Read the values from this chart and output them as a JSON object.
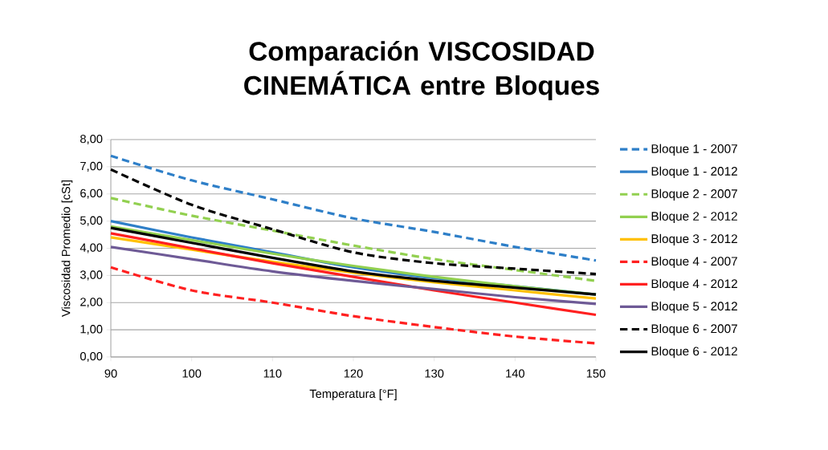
{
  "chart_data": {
    "type": "line",
    "title": "Comparación VISCOSIDAD CINEMÁTICA entre Bloques",
    "xlabel": "Temperatura [°F]",
    "ylabel": "Viscosidad Promedio [cSt]",
    "x": [
      90,
      100,
      110,
      120,
      130,
      140,
      150
    ],
    "xlim": [
      90,
      150
    ],
    "xticks": [
      90,
      100,
      110,
      120,
      130,
      140,
      150
    ],
    "ylim": [
      0,
      8
    ],
    "yticks": [
      {
        "value": 0,
        "label": "0,00"
      },
      {
        "value": 1,
        "label": "1,00"
      },
      {
        "value": 2,
        "label": "2,00"
      },
      {
        "value": 3,
        "label": "3,00"
      },
      {
        "value": 4,
        "label": "4,00"
      },
      {
        "value": 5,
        "label": "5,00"
      },
      {
        "value": 6,
        "label": "6,00"
      },
      {
        "value": 7,
        "label": "7,00"
      },
      {
        "value": 8,
        "label": "8,00"
      }
    ],
    "grid": "y",
    "legend": "right",
    "marker": "none",
    "series": [
      {
        "name": "Bloque 1 - 2007",
        "color": "#2e7fc8",
        "line_style": "dashed",
        "values": [
          7.4,
          6.5,
          5.8,
          5.1,
          4.6,
          4.05,
          3.55
        ]
      },
      {
        "name": "Bloque 1 - 2012",
        "color": "#2e7fc8",
        "line_style": "solid",
        "values": [
          5.0,
          4.4,
          3.85,
          3.3,
          2.9,
          2.6,
          2.3
        ]
      },
      {
        "name": "Bloque 2 - 2007",
        "color": "#92d050",
        "line_style": "dashed",
        "values": [
          5.85,
          5.2,
          4.65,
          4.1,
          3.6,
          3.2,
          2.8
        ]
      },
      {
        "name": "Bloque 2 - 2012",
        "color": "#92d050",
        "line_style": "solid",
        "values": [
          4.8,
          4.3,
          3.8,
          3.35,
          2.95,
          2.6,
          2.3
        ]
      },
      {
        "name": "Bloque 3 - 2012",
        "color": "#ffc000",
        "line_style": "solid",
        "values": [
          4.4,
          3.95,
          3.5,
          3.1,
          2.75,
          2.45,
          2.15
        ]
      },
      {
        "name": "Bloque 4 - 2007",
        "color": "#ff2020",
        "line_style": "dashed",
        "values": [
          3.3,
          2.45,
          2.0,
          1.5,
          1.1,
          0.75,
          0.5
        ]
      },
      {
        "name": "Bloque 4 - 2012",
        "color": "#ff2020",
        "line_style": "solid",
        "values": [
          4.55,
          4.0,
          3.45,
          2.95,
          2.45,
          2.0,
          1.55
        ]
      },
      {
        "name": "Bloque 5 - 2012",
        "color": "#6e5a96",
        "line_style": "solid",
        "values": [
          4.05,
          3.6,
          3.15,
          2.8,
          2.5,
          2.2,
          1.95
        ]
      },
      {
        "name": "Bloque 6 - 2007",
        "color": "#000000",
        "line_style": "dashed",
        "values": [
          6.9,
          5.6,
          4.7,
          3.85,
          3.45,
          3.25,
          3.05
        ]
      },
      {
        "name": "Bloque 6 - 2012",
        "color": "#000000",
        "line_style": "solid",
        "values": [
          4.75,
          4.2,
          3.65,
          3.15,
          2.8,
          2.55,
          2.3
        ]
      }
    ]
  }
}
